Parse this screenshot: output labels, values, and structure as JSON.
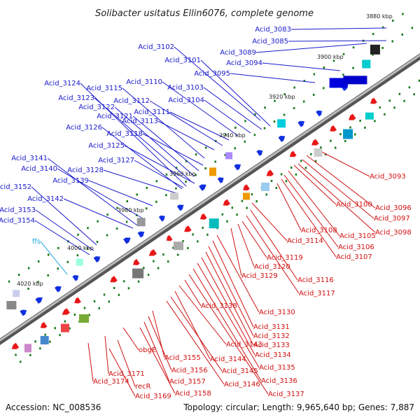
{
  "title": "Solibacter usitatus Ellin6076, complete genome",
  "footer": {
    "accession": "Accession: NC_008536",
    "summary": "Topology: circular; Length: 9,965,640 bp; Genes: 7,887"
  },
  "ticks": [
    "3880 kbp",
    "3900 kbp",
    "3920 kbp",
    "3940 kbp",
    "3960 kbp",
    "3980 kbp",
    "4000 kbp",
    "4020 kbp"
  ],
  "colors": {
    "plus_label": "#1a1acc",
    "minus_label": "#d01010",
    "rna_label": "#22aadd",
    "backbone": "#888888"
  },
  "plus_labels": [
    "Acid_3083",
    "Acid_3085",
    "Acid_3089",
    "Acid_3094",
    "Acid_3095",
    "Acid_3101",
    "Acid_3102",
    "Acid_3103",
    "Acid_3104",
    "Acid_3110",
    "Acid_3111",
    "Acid_3112",
    "Acid_3113",
    "Acid_3115",
    "Acid_3118",
    "Acid_3121",
    "Acid_3122",
    "Acid_3123",
    "Acid_3124",
    "Acid_3125",
    "Acid_3126",
    "Acid_3127",
    "Acid_3128",
    "Acid_3139",
    "Acid_3140",
    "Acid_3141",
    "Acid_3142",
    "Acid_3152",
    "Acid_3153",
    "Acid_3154"
  ],
  "rna_labels": [
    "ffs"
  ],
  "minus_labels": [
    "Acid_3093",
    "Acid_3096",
    "Acid_3097",
    "Acid_3098",
    "Acid_3100",
    "Acid_3105",
    "Acid_3106",
    "Acid_3107",
    "Acid_3108",
    "Acid_3114",
    "Acid_3116",
    "Acid_3117",
    "Acid_3119",
    "Acid_3120",
    "Acid_3129",
    "Acid_3130",
    "Acid_3131",
    "Acid_3132",
    "Acid_3133",
    "Acid_3134",
    "Acid_3135",
    "Acid_3136",
    "Acid_3137",
    "Acid_3138",
    "Acid_3143",
    "Acid_3144",
    "Acid_3145",
    "Acid_3146",
    "Acid_3155",
    "Acid_3156",
    "Acid_3157",
    "Acid_3158",
    "obgE",
    "Acid_3171",
    "Acid_3174",
    "recR",
    "Acid_3169"
  ]
}
